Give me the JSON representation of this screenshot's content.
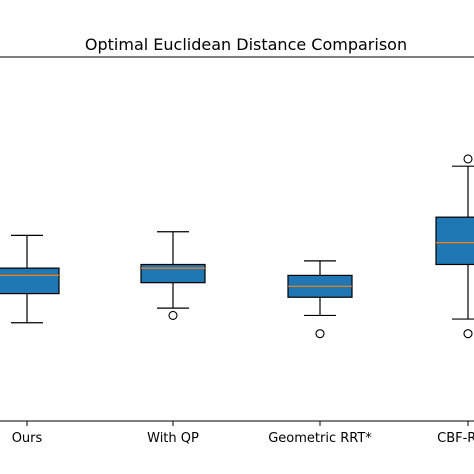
{
  "chart_data": {
    "type": "box",
    "title": "Optimal Euclidean Distance Comparison",
    "xlabel": "",
    "ylabel": "",
    "categories": [
      "Ours",
      "With QP",
      "Geometric RRT*",
      "CBF-RRT*"
    ],
    "ylim": [
      0,
      100
    ],
    "grid": false,
    "box_color": "#1f77b4",
    "median_color": "#ff7f0e",
    "boxes": [
      {
        "label": "Ours",
        "whislo": 27,
        "q1": 35,
        "med": 40,
        "q3": 42,
        "whishi": 51,
        "fliers": []
      },
      {
        "label": "With QP",
        "whislo": 31,
        "q1": 38,
        "med": 42,
        "q3": 43,
        "whishi": 52,
        "fliers": [
          29
        ]
      },
      {
        "label": "Geometric RRT*",
        "whislo": 29,
        "q1": 34,
        "med": 37,
        "q3": 40,
        "whishi": 44,
        "fliers": [
          24
        ]
      },
      {
        "label": "CBF-RRT*",
        "whislo": 28,
        "q1": 43,
        "med": 49,
        "q3": 56,
        "whishi": 70,
        "fliers": [
          72,
          24
        ]
      }
    ]
  }
}
